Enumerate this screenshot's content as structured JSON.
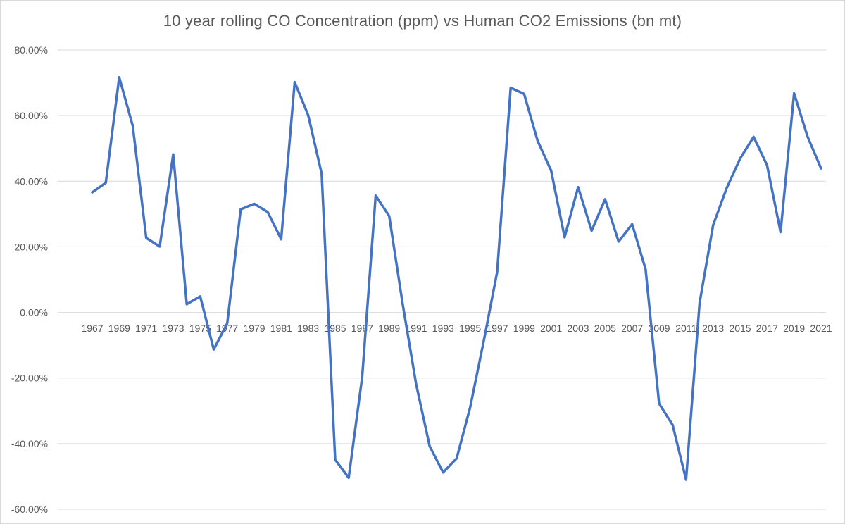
{
  "chart_data": {
    "type": "line",
    "title": "10 year rolling CO Concentration (ppm) vs Human CO2 Emissions (bn mt)",
    "xlabel": "",
    "ylabel": "",
    "ylim": [
      -60,
      80
    ],
    "y_ticks": [
      80,
      60,
      40,
      20,
      0,
      -20,
      -40,
      -60
    ],
    "y_tick_labels": [
      "80.00%",
      "60.00%",
      "40.00%",
      "20.00%",
      "0.00%",
      "-20.00%",
      "-40.00%",
      "-60.00%"
    ],
    "grid": true,
    "legend": "none",
    "series_color": "#4472c4",
    "x": [
      1967,
      1968,
      1969,
      1970,
      1971,
      1972,
      1973,
      1974,
      1975,
      1976,
      1977,
      1978,
      1979,
      1980,
      1981,
      1982,
      1983,
      1984,
      1985,
      1986,
      1987,
      1988,
      1989,
      1990,
      1991,
      1992,
      1993,
      1994,
      1995,
      1996,
      1997,
      1998,
      1999,
      2000,
      2001,
      2002,
      2003,
      2004,
      2005,
      2006,
      2007,
      2008,
      2009,
      2010,
      2011,
      2012,
      2013,
      2014,
      2015,
      2016,
      2017,
      2018,
      2019,
      2020,
      2021
    ],
    "x_tick_labels": [
      "1967",
      "1969",
      "1971",
      "1973",
      "1975",
      "1977",
      "1979",
      "1981",
      "1983",
      "1985",
      "1987",
      "1989",
      "1991",
      "1993",
      "1995",
      "1997",
      "1999",
      "2001",
      "2003",
      "2005",
      "2007",
      "2009",
      "2011",
      "2013",
      "2015",
      "2017",
      "2019",
      "2021"
    ],
    "series": [
      {
        "values": [
          36.6,
          39.5,
          71.7,
          56.9,
          22.7,
          20.1,
          48.2,
          2.5,
          4.9,
          -11.3,
          -3.3,
          31.4,
          33.1,
          30.6,
          22.3,
          70.2,
          60.1,
          42.3,
          -44.9,
          -50.4,
          -19.8,
          35.6,
          29.4,
          2.6,
          -21.9,
          -40.8,
          -48.8,
          -44.5,
          -28.9,
          -8.9,
          12.3,
          68.5,
          66.6,
          52.3,
          43.2,
          22.9,
          38.2,
          24.9,
          34.5,
          21.6,
          26.9,
          13.2,
          -27.8,
          -34.3,
          -51.0,
          2.9,
          26.6,
          37.8,
          46.9,
          53.5,
          44.9,
          24.5,
          66.8,
          53.6,
          43.9
        ]
      }
    ]
  }
}
